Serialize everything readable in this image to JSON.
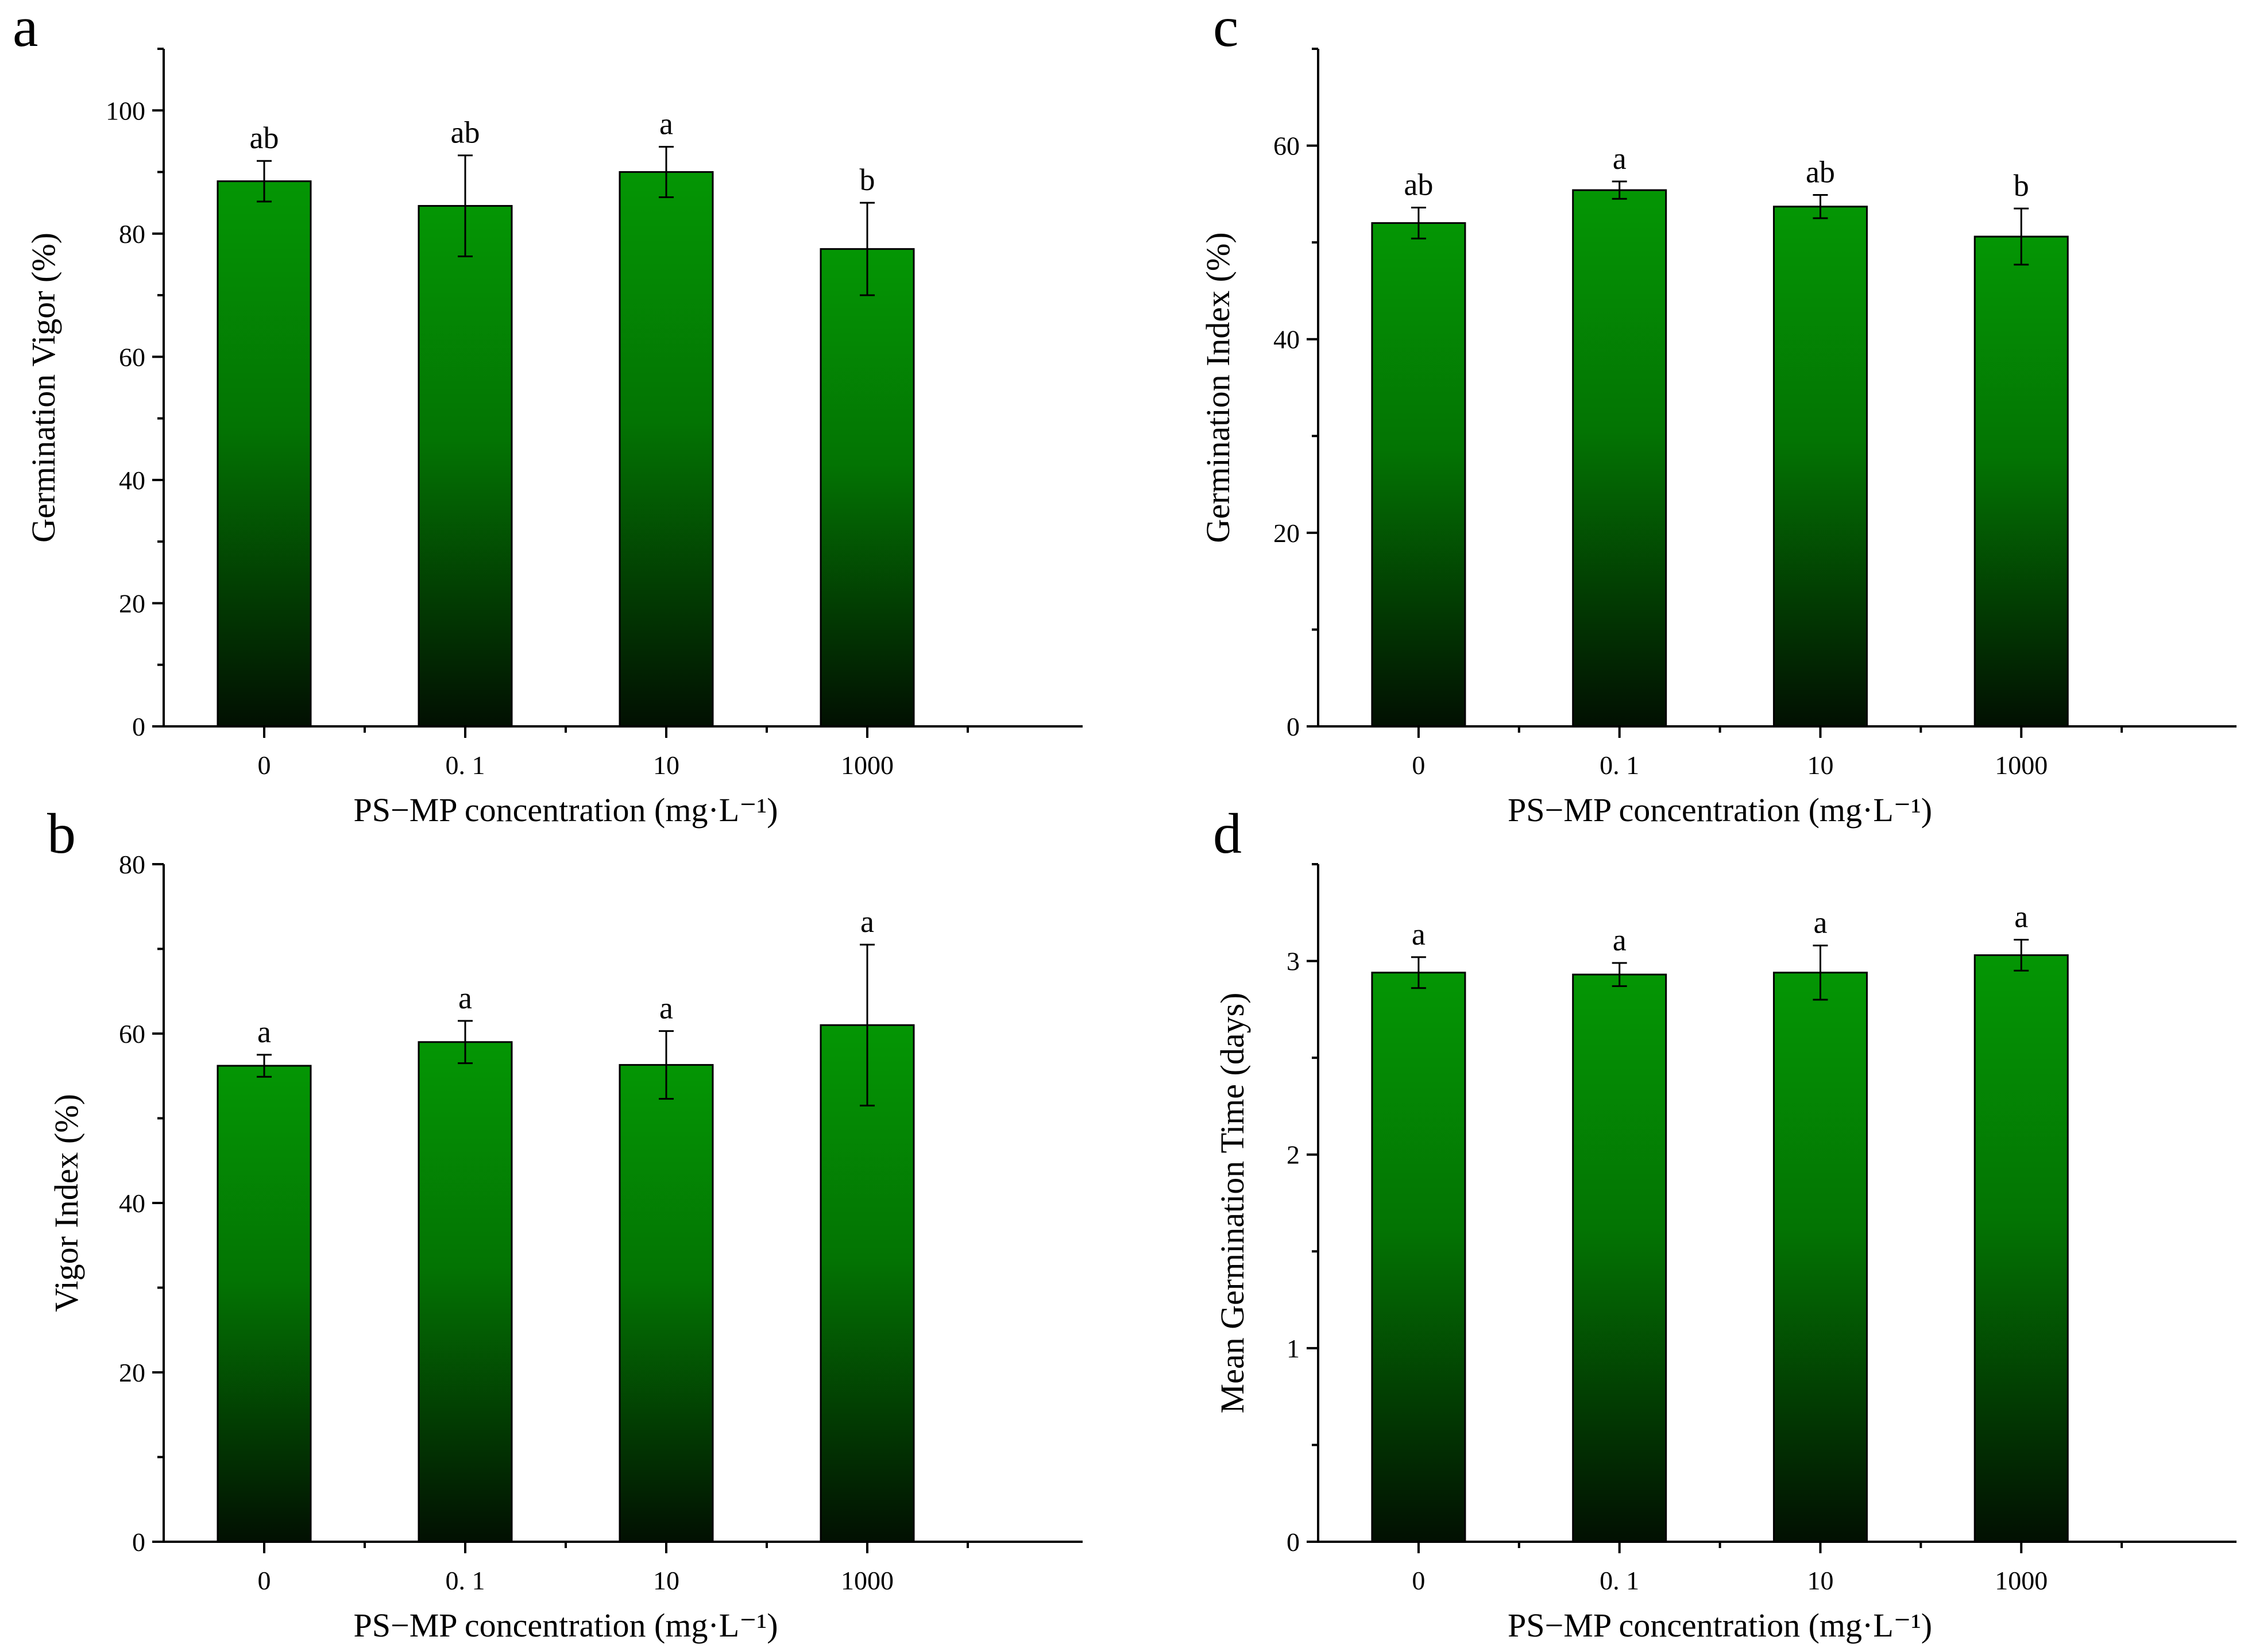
{
  "figure": {
    "bar_color_top": "#049604",
    "bar_color_bottom": "#021002",
    "axis_color": "#000000"
  },
  "chart_data": [
    {
      "panel_label": "a",
      "type": "bar",
      "categories": [
        "0",
        "0. 1",
        "10",
        "1000"
      ],
      "values": [
        88.5,
        84.5,
        90.0,
        77.5
      ],
      "errors": [
        3.3,
        8.2,
        4.1,
        7.5
      ],
      "significance": [
        "ab",
        "ab",
        "a",
        "b"
      ],
      "xlabel": "PS−MP concentration (mg·L⁻¹)",
      "ylabel": "Germination Vigor (%)",
      "ylim": [
        0,
        110
      ],
      "yticks": [
        0,
        20,
        40,
        60,
        80,
        100
      ],
      "yticks_minor": [
        10,
        30,
        50,
        70,
        90,
        110
      ],
      "yticks_minor_labeled": false
    },
    {
      "panel_label": "b",
      "type": "bar",
      "categories": [
        "0",
        "0. 1",
        "10",
        "1000"
      ],
      "values": [
        56.2,
        59.0,
        56.3,
        61.0
      ],
      "errors": [
        1.3,
        2.5,
        4.0,
        9.5
      ],
      "significance": [
        "a",
        "a",
        "a",
        "a"
      ],
      "xlabel": "PS−MP concentration (mg·L⁻¹)",
      "ylabel": "Vigor Index (%)",
      "ylim": [
        0,
        80
      ],
      "yticks": [
        0,
        20,
        40,
        60,
        80
      ],
      "yticks_minor": [
        10,
        30,
        50,
        70
      ],
      "yticks_minor_labeled": false
    },
    {
      "panel_label": "c",
      "type": "bar",
      "categories": [
        "0",
        "0. 1",
        "10",
        "1000"
      ],
      "values": [
        52.0,
        55.4,
        53.7,
        50.6
      ],
      "errors": [
        1.6,
        0.9,
        1.2,
        2.9
      ],
      "significance": [
        "ab",
        "a",
        "ab",
        "b"
      ],
      "xlabel": "PS−MP concentration (mg·L⁻¹)",
      "ylabel": "Germination Index (%)",
      "ylim": [
        0,
        70
      ],
      "yticks": [
        0,
        20,
        40,
        60
      ],
      "yticks_minor": [
        10,
        30,
        50,
        70
      ],
      "yticks_minor_labeled": false
    },
    {
      "panel_label": "d",
      "type": "bar",
      "categories": [
        "0",
        "0. 1",
        "10",
        "1000"
      ],
      "values": [
        2.94,
        2.93,
        2.94,
        3.03
      ],
      "errors": [
        0.08,
        0.06,
        0.14,
        0.08
      ],
      "significance": [
        "a",
        "a",
        "a",
        "a"
      ],
      "xlabel": "PS−MP concentration (mg·L⁻¹)",
      "ylabel": "Mean Germination Time (days)",
      "ylim": [
        0,
        3.5
      ],
      "yticks": [
        0,
        1,
        2,
        3
      ],
      "yticks_minor": [
        0.5,
        1.5,
        2.5,
        3.5
      ],
      "yticks_minor_labeled": false
    }
  ]
}
